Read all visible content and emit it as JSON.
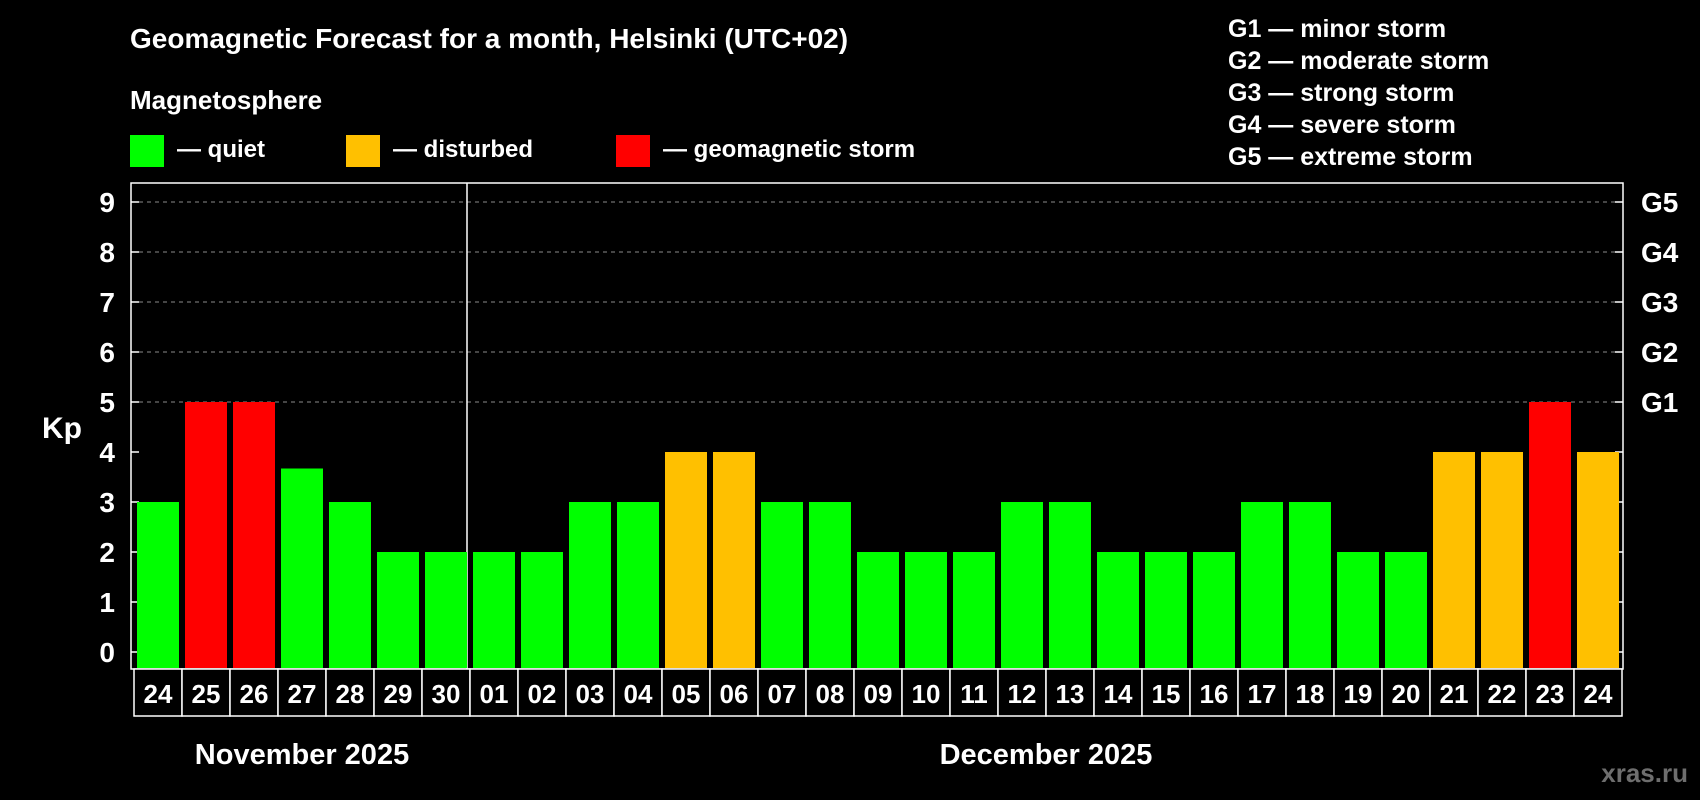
{
  "title": "Geomagnetic Forecast for a month, Helsinki (UTC+02)",
  "subtitle": "Magnetosphere",
  "legend": [
    {
      "label": "— quiet",
      "color": "#00ff00"
    },
    {
      "label": "— disturbed",
      "color": "#ffc000"
    },
    {
      "label": "— geomagnetic storm",
      "color": "#ff0000"
    }
  ],
  "storm_scale": [
    "G1 — minor storm",
    "G2 — moderate storm",
    "G3 — strong storm",
    "G4 — severe storm",
    "G5 — extreme storm"
  ],
  "watermark": "xras.ru",
  "chart_data": {
    "type": "bar",
    "ylabel": "Kp",
    "ylim": [
      0,
      9
    ],
    "yticks": [
      "0",
      "1",
      "2",
      "3",
      "4",
      "5",
      "6",
      "7",
      "8",
      "9"
    ],
    "right_ticks": [
      {
        "value": 5,
        "label": "G1"
      },
      {
        "value": 6,
        "label": "G2"
      },
      {
        "value": 7,
        "label": "G3"
      },
      {
        "value": 8,
        "label": "G4"
      },
      {
        "value": 9,
        "label": "G5"
      }
    ],
    "categories": [
      "24",
      "25",
      "26",
      "27",
      "28",
      "29",
      "30",
      "01",
      "02",
      "03",
      "04",
      "05",
      "06",
      "07",
      "08",
      "09",
      "10",
      "11",
      "12",
      "13",
      "14",
      "15",
      "16",
      "17",
      "18",
      "19",
      "20",
      "21",
      "22",
      "23",
      "24"
    ],
    "values": [
      3,
      5,
      5,
      3.67,
      3,
      2,
      2,
      2,
      2,
      3,
      3,
      4,
      4,
      3,
      3,
      2,
      2,
      2,
      3,
      3,
      2,
      2,
      2,
      3,
      3,
      2,
      2,
      4,
      4,
      5,
      4
    ],
    "colors": [
      "#00ff00",
      "#ff0000",
      "#ff0000",
      "#00ff00",
      "#00ff00",
      "#00ff00",
      "#00ff00",
      "#00ff00",
      "#00ff00",
      "#00ff00",
      "#00ff00",
      "#ffc000",
      "#ffc000",
      "#00ff00",
      "#00ff00",
      "#00ff00",
      "#00ff00",
      "#00ff00",
      "#00ff00",
      "#00ff00",
      "#00ff00",
      "#00ff00",
      "#00ff00",
      "#00ff00",
      "#00ff00",
      "#00ff00",
      "#00ff00",
      "#ffc000",
      "#ffc000",
      "#ff0000",
      "#ffc000"
    ],
    "months": [
      {
        "label": "November 2025",
        "start_index": 0,
        "count": 7
      },
      {
        "label": "December 2025",
        "start_index": 7,
        "count": 24
      }
    ],
    "grid": true
  }
}
